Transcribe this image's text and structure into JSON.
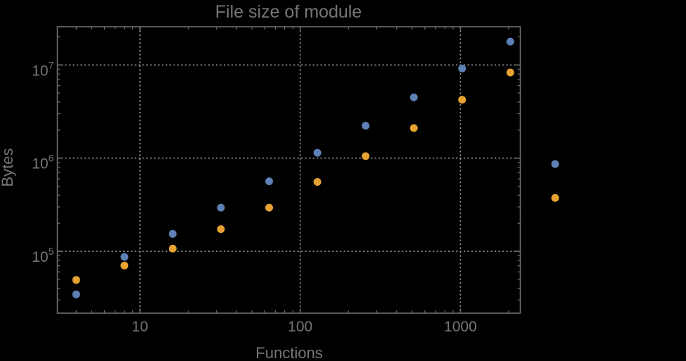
{
  "chart_data": {
    "type": "scatter",
    "title": "File size of module",
    "xlabel": "Functions",
    "ylabel": "Bytes",
    "xscale": "log",
    "yscale": "log",
    "xlim": [
      3.05,
      2364
    ],
    "ylim": [
      21700,
      25700000
    ],
    "grid": {
      "style": "dotted",
      "x_values": [
        10,
        100,
        1000
      ],
      "y_values": [
        100000,
        1000000,
        10000000
      ]
    },
    "x_axis": {
      "tick_values": [
        10,
        100,
        1000
      ],
      "tick_labels": [
        "10",
        "100",
        "1000"
      ]
    },
    "y_axis": {
      "tick_values": [
        100000,
        1000000,
        10000000
      ],
      "tick_labels": [
        {
          "base": "10",
          "exp": "5"
        },
        {
          "base": "10",
          "exp": "6"
        },
        {
          "base": "10",
          "exp": "7"
        }
      ]
    },
    "x": [
      4,
      8,
      16,
      32,
      64,
      128,
      256,
      512,
      1024,
      2048,
      3900
    ],
    "series": [
      {
        "name": "blue",
        "color": "#5e81b5",
        "values": [
          34500,
          87000,
          154000,
          294000,
          564000,
          1140000,
          2230000,
          4490000,
          9160000,
          17800000,
          864000
        ]
      },
      {
        "name": "orange",
        "color": "#e7a232",
        "values": [
          49300,
          70400,
          107000,
          173000,
          294000,
          556000,
          1050000,
          2100000,
          4230000,
          8300000,
          374000
        ]
      }
    ],
    "marker_radius": 5.5
  },
  "colors": {
    "background": "#000000",
    "frame": "#6b6b6b",
    "gridline": "#969696",
    "text": "#767676"
  }
}
